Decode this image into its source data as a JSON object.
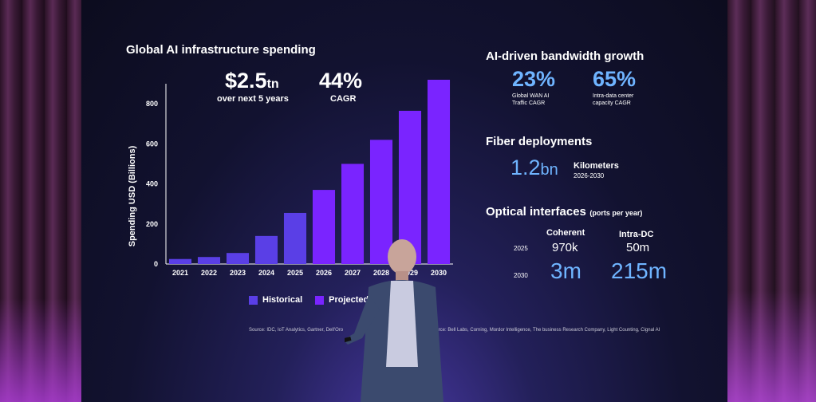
{
  "left": {
    "title": "Global AI infrastructure spending",
    "stat1": {
      "value": "$2.5",
      "unit": "tn",
      "label": "over next 5 years"
    },
    "stat2": {
      "value": "44%",
      "label": "CAGR"
    },
    "source": "Source: IDC, IoT Analytics, Gartner, Dell'Oro"
  },
  "chart_data": {
    "type": "bar",
    "ylabel": "Spending USD (Billions)",
    "xlabel": "",
    "ylim": [
      0,
      900
    ],
    "yticks": [
      "0",
      "200",
      "400",
      "600",
      "800"
    ],
    "categories": [
      "2021",
      "2022",
      "2023",
      "2024",
      "2025",
      "2026",
      "2027",
      "2028",
      "2029",
      "2030"
    ],
    "values": [
      25,
      35,
      55,
      140,
      255,
      370,
      500,
      620,
      765,
      920
    ],
    "types": [
      "historical",
      "historical",
      "historical",
      "historical",
      "historical",
      "projected",
      "projected",
      "projected",
      "projected",
      "projected"
    ],
    "legend": [
      {
        "name": "Historical",
        "color": "#5a3fe6"
      },
      {
        "name": "Projected",
        "color": "#7a24ff"
      }
    ],
    "legend_position": "bottom"
  },
  "right": {
    "bandwidth_title": "AI-driven bandwidth growth",
    "wan": {
      "value": "23%",
      "label1": "Global WAN AI",
      "label2": "Traffic CAGR"
    },
    "dc": {
      "value": "65%",
      "label1": "Intra-data center",
      "label2": "capacity CAGR"
    },
    "fiber_title": "Fiber deployments",
    "fiber_value": "1.2",
    "fiber_unit": "bn",
    "fiber_label": "Kilometers",
    "fiber_years": "2026-2030",
    "optical_title": "Optical interfaces",
    "optical_sub": "(ports per year)",
    "col1": "Coherent",
    "col2": "Intra-DC",
    "row1_year": "2025",
    "row1_v1": "970k",
    "row1_v2": "50m",
    "row2_year": "2030",
    "row2_v1": "3m",
    "row2_v2": "215m",
    "source": "Source: Bell Labs, Corning, Mordor Intelligence, The business Research Company, Light Counting, Cignal AI"
  }
}
